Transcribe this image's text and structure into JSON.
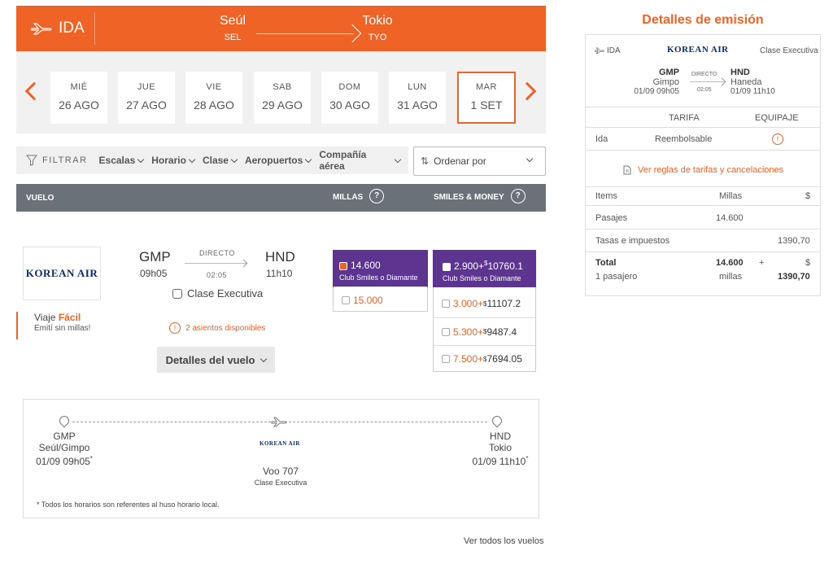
{
  "header": {
    "direction": "IDA",
    "origin_city": "Seúl",
    "origin_code": "SEL",
    "dest_city": "Tokio",
    "dest_code": "TYO",
    "plane_icon": "plane-icon"
  },
  "dates": [
    {
      "dow": "MIÉ",
      "day": "26 AGO"
    },
    {
      "dow": "JUE",
      "day": "27 AGO"
    },
    {
      "dow": "VIE",
      "day": "28 AGO"
    },
    {
      "dow": "SAB",
      "day": "29 AGO"
    },
    {
      "dow": "DOM",
      "day": "30 AGO"
    },
    {
      "dow": "LUN",
      "day": "31 AGO"
    },
    {
      "dow": "MAR",
      "day": "1 SET"
    }
  ],
  "filters": {
    "label": "FILTRAR",
    "items": [
      "Escalas",
      "Horario",
      "Clase",
      "Aeropuertos",
      "Compañía aérea"
    ],
    "sort_label": "Ordenar por"
  },
  "table_header": {
    "flight": "VUELO",
    "miles": "MILLAS",
    "smiles_money": "SMILES & MONEY",
    "help": "?"
  },
  "flight": {
    "airline": "KOREAN AIR",
    "origin": "GMP",
    "dep_time": "09h05",
    "dest": "HND",
    "arr_time": "11h10",
    "type": "DIRECTO",
    "duration": "02:05",
    "cabin": "Clase Executiva",
    "seats": "2 asientos disponibles",
    "details_button": "Detalles del vuelo",
    "promo_line1_a": "Viaje",
    "promo_line1_b": "Fácil",
    "promo_line2": "Emití sin millas!"
  },
  "fares_miles": {
    "selected": {
      "miles": "14.600",
      "club": "Club Smiles o Diamante"
    },
    "other": "15.000"
  },
  "fares_money": {
    "selected": {
      "miles": "2.900+",
      "money": "10760.1",
      "club": "Club Smiles o Diamante"
    },
    "options": [
      {
        "miles": "3.000+",
        "money": "11107.2"
      },
      {
        "miles": "5.300+",
        "money": "9487.4"
      },
      {
        "miles": "7.500+",
        "money": "7694.05"
      }
    ],
    "currency": "$"
  },
  "route": {
    "origin_code": "GMP",
    "origin_city": "Seúl/Gimpo",
    "origin_dt": "01/09 09h05",
    "dest_code": "HND",
    "dest_city": "Tokio",
    "dest_dt": "01/09 11h10",
    "star": "*",
    "airline": "KOREAN AIR",
    "flight_no": "Voo 707",
    "cabin": "Clase Executiva",
    "note": "* Todos los horarios son referentes al huso horario local."
  },
  "see_all": "Ver todos los vuelos",
  "panel": {
    "title": "Detalles de emisión",
    "direction": "IDA",
    "airline": "KOREAN AIR",
    "cabin": "Clase Executiva",
    "origin_code": "GMP",
    "origin_name": "Gimpo",
    "origin_dt": "01/09 09h05",
    "type": "DIRECTO",
    "duration": "02:05",
    "dest_code": "HND",
    "dest_name": "Haneda",
    "dest_dt": "01/09 11h10",
    "col_tarifa": "TARIFA",
    "col_equipaje": "EQUIPAJE",
    "leg": "Ida",
    "refund": "Reembolsable",
    "rules_link": "Ver reglas de tarifas y cancelaciones",
    "items_h": "Items",
    "millas_h": "Millas",
    "dollar_h": "$",
    "pasajes": "Pasajes",
    "pasajes_millas": "14.600",
    "tasas": "Tasas e impuestos",
    "tasas_val": "1390,70",
    "total": "Total",
    "total_millas": "14.600",
    "plus": "+",
    "total_dollar": "$",
    "pasajero": "1 pasajero",
    "millas_word": "millas",
    "total_val": "1390,70",
    "warn": "!"
  },
  "colors": {
    "accent": "#ef6326",
    "purple": "#5d3591",
    "header_gray": "#6b7178"
  }
}
